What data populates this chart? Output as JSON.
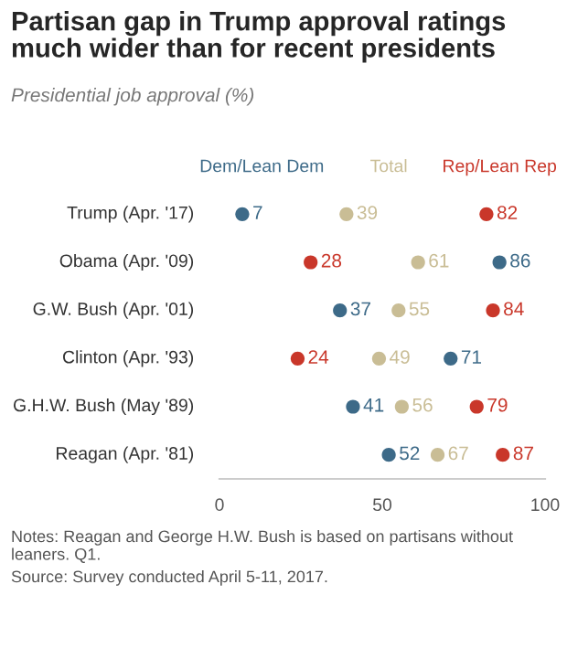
{
  "chart_data": {
    "type": "scatter",
    "title": "Partisan gap in Trump approval ratings much wider than for recent presidents",
    "subtitle": "Presidential job approval (%)",
    "categories": [
      "Trump (Apr. '17)",
      "Obama (Apr. '09)",
      "G.W. Bush (Apr. '01)",
      "Clinton (Apr. '93)",
      "G.H.W. Bush (May '89)",
      "Reagan (Apr. '81)"
    ],
    "series": [
      {
        "name": "Dem/Lean Dem",
        "color": "#3d6a88",
        "values": [
          7,
          86,
          37,
          71,
          41,
          52
        ]
      },
      {
        "name": "Total",
        "color": "#c9bd95",
        "values": [
          39,
          61,
          55,
          49,
          56,
          67
        ]
      },
      {
        "name": "Rep/Lean Rep",
        "color": "#c9372a",
        "values": [
          82,
          28,
          84,
          24,
          79,
          87
        ]
      }
    ],
    "orientation": "horizontal",
    "xlim": [
      0,
      100
    ],
    "xticks": [
      0,
      50,
      100
    ],
    "grid": false,
    "marker": "circle",
    "data_labels": true,
    "annotations": [
      "Notes: Reagan and George H.W. Bush is based on partisans without leaners. Q1.",
      "Source: Survey conducted April 5-11, 2017."
    ]
  }
}
